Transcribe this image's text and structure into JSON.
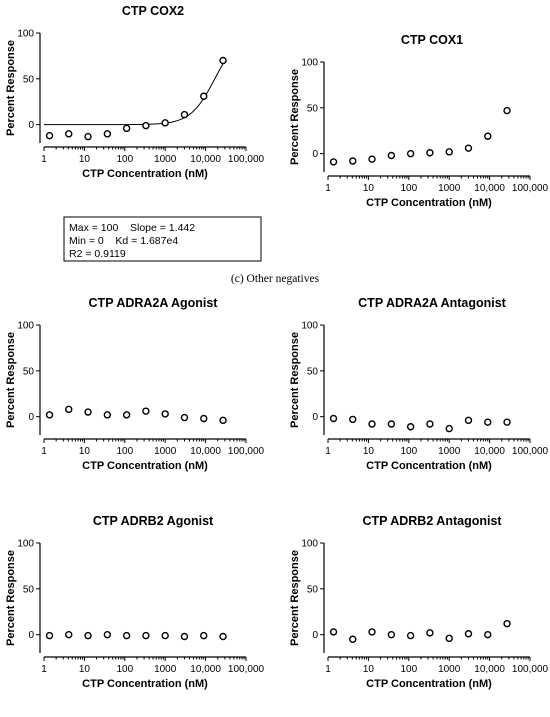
{
  "caption": "(c) Other negatives",
  "fit_box": {
    "line1": "Max = 100    Slope = 1.442",
    "line2": "Min = 0    Kd = 1.687e4",
    "line3": "R2 = 0.9119"
  },
  "chart_data": [
    {
      "type": "scatter",
      "title": "CTP COX2",
      "xlabel": "CTP Concentration (nM)",
      "ylabel": "Percent Response",
      "xscale": "log",
      "xlim": [
        1,
        100000
      ],
      "ylim": [
        -20,
        100
      ],
      "xticks": [
        "1",
        "10",
        "100",
        "1000",
        "10,000",
        "100,000"
      ],
      "yticks": [
        "0",
        "50",
        "100"
      ],
      "x": [
        1.37,
        4.1,
        12.3,
        37,
        111,
        333,
        1000,
        3000,
        9000,
        27000
      ],
      "y": [
        -12,
        -10,
        -13,
        -10,
        -4,
        -1,
        2,
        11,
        31,
        70
      ],
      "fit": {
        "model": "hill",
        "max": 100,
        "min": 0,
        "slope": 1.442,
        "kd": 16870
      }
    },
    {
      "type": "scatter",
      "title": "CTP COX1",
      "xlabel": "CTP Concentration (nM)",
      "ylabel": "Percent Response",
      "xscale": "log",
      "xlim": [
        1,
        100000
      ],
      "ylim": [
        -20,
        100
      ],
      "xticks": [
        "1",
        "10",
        "100",
        "1000",
        "10,000",
        "100,000"
      ],
      "yticks": [
        "0",
        "50",
        "100"
      ],
      "x": [
        1.37,
        4.1,
        12.3,
        37,
        111,
        333,
        1000,
        3000,
        9000,
        27000
      ],
      "y": [
        -9,
        -8,
        -6,
        -2,
        0,
        1,
        2,
        6,
        19,
        47
      ]
    },
    {
      "type": "scatter",
      "title": "CTP ADRA2A Agonist",
      "xlabel": "CTP Concentration (nM)",
      "ylabel": "Percent Response",
      "xscale": "log",
      "xlim": [
        1,
        100000
      ],
      "ylim": [
        -20,
        100
      ],
      "xticks": [
        "1",
        "10",
        "100",
        "1000",
        "10,000",
        "100,000"
      ],
      "yticks": [
        "0",
        "50",
        "100"
      ],
      "x": [
        1.37,
        4.1,
        12.3,
        37,
        111,
        333,
        1000,
        3000,
        9000,
        27000
      ],
      "y": [
        2,
        8,
        5,
        2,
        2,
        6,
        3,
        -1,
        -2,
        -4
      ]
    },
    {
      "type": "scatter",
      "title": "CTP ADRA2A Antagonist",
      "xlabel": "CTP Concentration (nM)",
      "ylabel": "Percent Response",
      "xscale": "log",
      "xlim": [
        1,
        100000
      ],
      "ylim": [
        -20,
        100
      ],
      "xticks": [
        "1",
        "10",
        "100",
        "1000",
        "10,000",
        "100,000"
      ],
      "yticks": [
        "0",
        "50",
        "100"
      ],
      "x": [
        1.37,
        4.1,
        12.3,
        37,
        111,
        333,
        1000,
        3000,
        9000,
        27000
      ],
      "y": [
        -2,
        -3,
        -8,
        -8,
        -11,
        -8,
        -13,
        -4,
        -6,
        -6
      ]
    },
    {
      "type": "scatter",
      "title": "CTP ADRB2 Agonist",
      "xlabel": "CTP Concentration (nM)",
      "ylabel": "Percent Response",
      "xscale": "log",
      "xlim": [
        1,
        100000
      ],
      "ylim": [
        -20,
        100
      ],
      "xticks": [
        "1",
        "10",
        "100",
        "1000",
        "10,000",
        "100,000"
      ],
      "yticks": [
        "0",
        "50",
        "100"
      ],
      "x": [
        1.37,
        4.1,
        12.3,
        37,
        111,
        333,
        1000,
        3000,
        9000,
        27000
      ],
      "y": [
        -1,
        0,
        -1,
        0,
        -1,
        -1,
        -1,
        -2,
        -1,
        -2
      ]
    },
    {
      "type": "scatter",
      "title": "CTP ADRB2 Antagonist",
      "xlabel": "CTP Concentration (nM)",
      "ylabel": "Percent Response",
      "xscale": "log",
      "xlim": [
        1,
        100000
      ],
      "ylim": [
        -20,
        100
      ],
      "xticks": [
        "1",
        "10",
        "100",
        "1000",
        "10,000",
        "100,000"
      ],
      "yticks": [
        "0",
        "50",
        "100"
      ],
      "x": [
        1.37,
        4.1,
        12.3,
        37,
        111,
        333,
        1000,
        3000,
        9000,
        27000
      ],
      "y": [
        3,
        -5,
        3,
        0,
        -1,
        2,
        -4,
        1,
        0,
        12
      ]
    }
  ]
}
